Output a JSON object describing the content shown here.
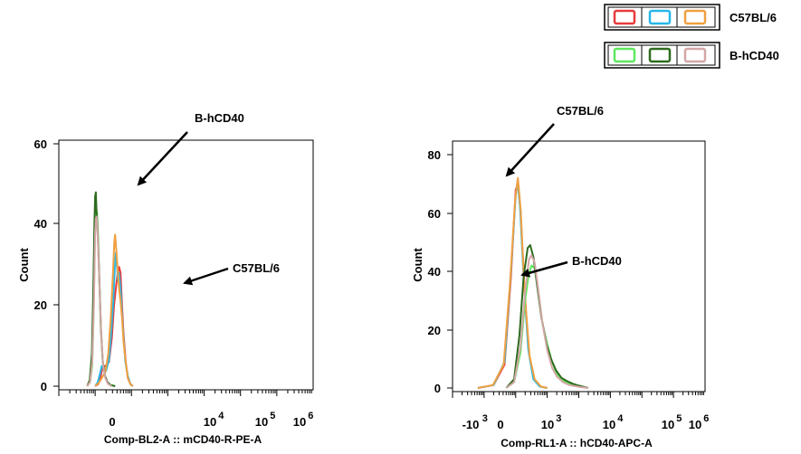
{
  "legend": [
    {
      "label": "C57BL/6",
      "colors": [
        "#e83a3a",
        "#27b7e8",
        "#f0a040"
      ]
    },
    {
      "label": "B-hCD40",
      "colors": [
        "#5ee85e",
        "#2e6b1e",
        "#d4a7a7"
      ]
    }
  ],
  "chart_data": [
    {
      "type": "line",
      "title": "",
      "xlabel": "Comp-BL2-A :: mCD40-R-PE-A",
      "ylabel": "Count",
      "ylim": [
        0,
        60
      ],
      "y_ticks": [
        "0",
        "20",
        "40",
        "60"
      ],
      "x_tick_labels": [
        {
          "base": "0",
          "exp": ""
        },
        {
          "base": "10",
          "exp": "4"
        },
        {
          "base": "10",
          "exp": "5"
        },
        {
          "base": "10",
          "exp": "6"
        }
      ],
      "annotations": [
        {
          "text": "B-hCD40",
          "points_to": "B-hCD40 peak"
        },
        {
          "text": "C57BL/6",
          "points_to": "C57BL/6 peak"
        }
      ],
      "series": [
        {
          "name": "C57BL/6",
          "color": "#e83a3a",
          "points": [
            [
              0.0,
              0
            ],
            [
              0.08,
              0.5
            ],
            [
              0.14,
              2
            ],
            [
              0.2,
              4.5
            ],
            [
              0.28,
              5
            ],
            [
              0.38,
              6
            ],
            [
              0.46,
              12
            ],
            [
              0.52,
              20
            ],
            [
              0.58,
              25
            ],
            [
              0.62,
              28
            ],
            [
              0.66,
              29.5
            ],
            [
              0.7,
              28
            ],
            [
              0.74,
              20
            ],
            [
              0.78,
              13
            ],
            [
              0.84,
              6
            ],
            [
              0.9,
              2
            ],
            [
              0.97,
              0.5
            ],
            [
              1.04,
              0
            ]
          ]
        },
        {
          "name": "C57BL/6",
          "color": "#27b7e8",
          "points": [
            [
              0.0,
              0
            ],
            [
              0.07,
              1
            ],
            [
              0.13,
              3
            ],
            [
              0.18,
              5
            ],
            [
              0.23,
              4.5
            ],
            [
              0.3,
              3.8
            ],
            [
              0.38,
              6.5
            ],
            [
              0.44,
              13
            ],
            [
              0.5,
              21
            ],
            [
              0.54,
              29
            ],
            [
              0.57,
              33
            ],
            [
              0.6,
              30
            ],
            [
              0.63,
              26
            ],
            [
              0.66,
              28
            ],
            [
              0.7,
              24
            ],
            [
              0.74,
              18
            ],
            [
              0.78,
              12
            ],
            [
              0.83,
              6
            ],
            [
              0.9,
              2.5
            ],
            [
              0.97,
              0.5
            ],
            [
              1.04,
              0
            ]
          ]
        },
        {
          "name": "C57BL/6",
          "color": "#f0a040",
          "points": [
            [
              0.0,
              0
            ],
            [
              0.1,
              0.8
            ],
            [
              0.18,
              2
            ],
            [
              0.28,
              3.5
            ],
            [
              0.36,
              8
            ],
            [
              0.43,
              17
            ],
            [
              0.49,
              28
            ],
            [
              0.53,
              36
            ],
            [
              0.55,
              37.5
            ],
            [
              0.58,
              34
            ],
            [
              0.62,
              29
            ],
            [
              0.66,
              24
            ],
            [
              0.7,
              21
            ],
            [
              0.74,
              17
            ],
            [
              0.78,
              11
            ],
            [
              0.84,
              6
            ],
            [
              0.9,
              2
            ],
            [
              0.97,
              0.5
            ],
            [
              1.04,
              0
            ]
          ]
        },
        {
          "name": "B-hCD40",
          "color": "#5ee85e",
          "points": [
            [
              -0.22,
              0
            ],
            [
              -0.14,
              1
            ],
            [
              -0.08,
              5
            ],
            [
              -0.04,
              18
            ],
            [
              -0.01,
              35
            ],
            [
              0.01,
              42
            ],
            [
              0.03,
              44
            ],
            [
              0.05,
              43
            ],
            [
              0.08,
              37
            ],
            [
              0.11,
              27
            ],
            [
              0.15,
              15
            ],
            [
              0.2,
              7
            ],
            [
              0.26,
              3
            ],
            [
              0.33,
              1
            ],
            [
              0.42,
              0.3
            ],
            [
              0.55,
              0
            ]
          ]
        },
        {
          "name": "B-hCD40",
          "color": "#2e6b1e",
          "points": [
            [
              -0.22,
              0
            ],
            [
              -0.15,
              1.5
            ],
            [
              -0.09,
              8
            ],
            [
              -0.05,
              24
            ],
            [
              -0.02,
              40
            ],
            [
              0.0,
              47
            ],
            [
              0.02,
              48
            ],
            [
              0.04,
              43
            ],
            [
              0.06,
              40
            ],
            [
              0.09,
              33
            ],
            [
              0.12,
              25
            ],
            [
              0.16,
              14
            ],
            [
              0.21,
              6
            ],
            [
              0.27,
              2.5
            ],
            [
              0.34,
              1
            ],
            [
              0.42,
              0.3
            ],
            [
              0.55,
              0
            ]
          ]
        },
        {
          "name": "B-hCD40",
          "color": "#d4a7a7",
          "points": [
            [
              -0.22,
              0
            ],
            [
              -0.14,
              1
            ],
            [
              -0.08,
              6
            ],
            [
              -0.03,
              22
            ],
            [
              0.0,
              38
            ],
            [
              0.02,
              41.5
            ],
            [
              0.04,
              42
            ],
            [
              0.06,
              39
            ],
            [
              0.09,
              32
            ],
            [
              0.13,
              22
            ],
            [
              0.17,
              12
            ],
            [
              0.22,
              5
            ],
            [
              0.28,
              2
            ],
            [
              0.35,
              0.6
            ],
            [
              0.45,
              0
            ]
          ]
        }
      ]
    },
    {
      "type": "line",
      "title": "",
      "xlabel": "Comp-RL1-A :: hCD40-APC-A",
      "ylabel": "Count",
      "ylim": [
        0,
        80
      ],
      "y_ticks": [
        "0",
        "20",
        "40",
        "60",
        "80"
      ],
      "x_tick_labels": [
        {
          "base": "-10",
          "exp": "3"
        },
        {
          "base": "0",
          "exp": ""
        },
        {
          "base": "10",
          "exp": "3"
        },
        {
          "base": "10",
          "exp": "4"
        },
        {
          "base": "10",
          "exp": "5"
        },
        {
          "base": "10",
          "exp": "6"
        }
      ],
      "annotations": [
        {
          "text": "C57BL/6",
          "points_to": "C57BL/6 peak"
        },
        {
          "text": "B-hCD40",
          "points_to": "B-hCD40 peak"
        }
      ],
      "series": [
        {
          "name": "C57BL/6",
          "color": "#e83a3a",
          "points": [
            [
              -1.2,
              0
            ],
            [
              -0.7,
              1
            ],
            [
              -0.35,
              8
            ],
            [
              -0.15,
              38
            ],
            [
              0.0,
              68
            ],
            [
              0.08,
              70
            ],
            [
              0.16,
              60
            ],
            [
              0.28,
              34
            ],
            [
              0.42,
              12
            ],
            [
              0.58,
              3
            ],
            [
              0.78,
              0.5
            ],
            [
              1.0,
              0
            ]
          ]
        },
        {
          "name": "C57BL/6",
          "color": "#27b7e8",
          "points": [
            [
              -1.2,
              0
            ],
            [
              -0.7,
              1
            ],
            [
              -0.35,
              9
            ],
            [
              -0.15,
              40
            ],
            [
              0.0,
              66
            ],
            [
              0.06,
              71
            ],
            [
              0.14,
              62
            ],
            [
              0.26,
              36
            ],
            [
              0.4,
              13
            ],
            [
              0.56,
              3
            ],
            [
              0.76,
              0.5
            ],
            [
              1.0,
              0
            ]
          ]
        },
        {
          "name": "C57BL/6",
          "color": "#f0a040",
          "points": [
            [
              -1.2,
              0
            ],
            [
              -0.72,
              1
            ],
            [
              -0.38,
              8
            ],
            [
              -0.18,
              36
            ],
            [
              -0.02,
              64
            ],
            [
              0.07,
              72
            ],
            [
              0.16,
              61
            ],
            [
              0.28,
              33
            ],
            [
              0.44,
              11
            ],
            [
              0.6,
              3
            ],
            [
              0.8,
              0.5
            ],
            [
              1.0,
              0
            ]
          ]
        },
        {
          "name": "B-hCD40",
          "color": "#5ee85e",
          "points": [
            [
              -0.3,
              0
            ],
            [
              -0.05,
              2
            ],
            [
              0.15,
              12
            ],
            [
              0.3,
              30
            ],
            [
              0.4,
              38
            ],
            [
              0.5,
              42
            ],
            [
              0.6,
              41
            ],
            [
              0.72,
              33
            ],
            [
              0.85,
              22
            ],
            [
              1.0,
              15
            ],
            [
              1.15,
              9
            ],
            [
              1.3,
              5
            ],
            [
              1.45,
              3
            ],
            [
              1.6,
              2
            ],
            [
              1.8,
              1
            ],
            [
              2.0,
              0.5
            ],
            [
              2.3,
              0
            ]
          ]
        },
        {
          "name": "B-hCD40",
          "color": "#2e6b1e",
          "points": [
            [
              -0.3,
              0
            ],
            [
              -0.05,
              3
            ],
            [
              0.12,
              18
            ],
            [
              0.25,
              38
            ],
            [
              0.38,
              48
            ],
            [
              0.46,
              49
            ],
            [
              0.56,
              45
            ],
            [
              0.68,
              35
            ],
            [
              0.82,
              24
            ],
            [
              0.98,
              15
            ],
            [
              1.12,
              10
            ],
            [
              1.28,
              6
            ],
            [
              1.45,
              3.5
            ],
            [
              1.6,
              2.5
            ],
            [
              1.8,
              1.5
            ],
            [
              2.0,
              0.8
            ],
            [
              2.3,
              0
            ]
          ]
        },
        {
          "name": "B-hCD40",
          "color": "#d4a7a7",
          "points": [
            [
              -0.3,
              0
            ],
            [
              -0.05,
              2
            ],
            [
              0.15,
              14
            ],
            [
              0.3,
              33
            ],
            [
              0.42,
              44
            ],
            [
              0.5,
              45.5
            ],
            [
              0.6,
              43
            ],
            [
              0.7,
              35
            ],
            [
              0.85,
              22
            ],
            [
              1.0,
              13
            ],
            [
              1.15,
              7
            ],
            [
              1.3,
              4
            ],
            [
              1.5,
              2
            ],
            [
              1.7,
              1
            ],
            [
              2.0,
              0.4
            ],
            [
              2.3,
              0
            ]
          ]
        }
      ]
    }
  ]
}
